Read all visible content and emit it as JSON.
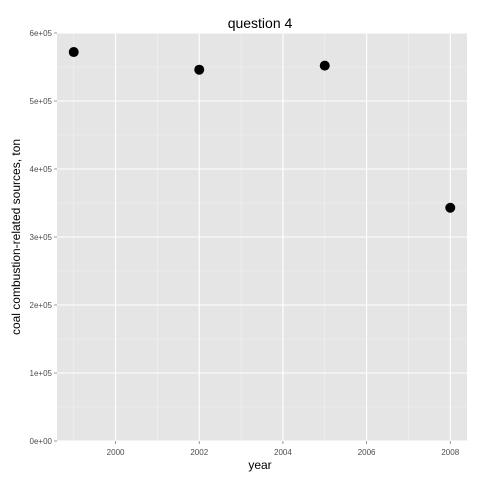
{
  "chart_data": {
    "type": "scatter",
    "title": "question 4",
    "xlabel": "year",
    "ylabel": "coal combustion-related sources, ton",
    "xlim": [
      1998.6,
      2008.4
    ],
    "ylim": [
      0,
      600000
    ],
    "x_ticks": [
      2000,
      2002,
      2004,
      2006,
      2008
    ],
    "x_tick_labels": [
      "2000",
      "2002",
      "2004",
      "2006",
      "2008"
    ],
    "y_ticks": [
      0,
      100000,
      200000,
      300000,
      400000,
      500000,
      600000
    ],
    "y_tick_labels": [
      "0e+00",
      "1e+05",
      "2e+05",
      "3e+05",
      "4e+05",
      "5e+05",
      "6e+05"
    ],
    "grid": true,
    "legend": "none",
    "colors": {
      "panel_background": "#e5e5e5",
      "grid_major": "#ffffff",
      "grid_minor": "#f2f2f2",
      "point": "#000000"
    },
    "points": [
      {
        "x": 1999,
        "y": 572000
      },
      {
        "x": 2002,
        "y": 546000
      },
      {
        "x": 2005,
        "y": 552000
      },
      {
        "x": 2008,
        "y": 343000
      }
    ]
  }
}
